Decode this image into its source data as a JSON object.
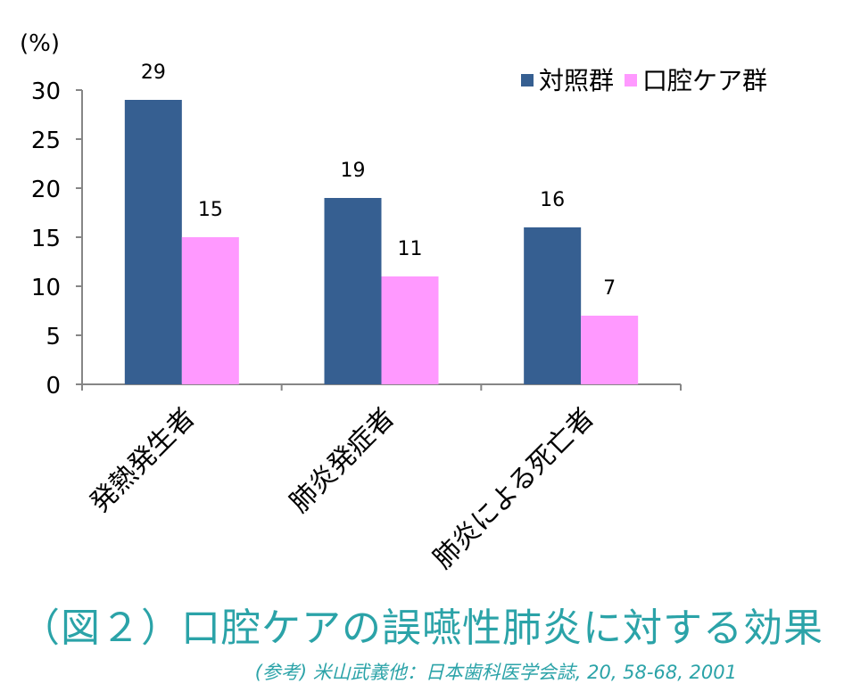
{
  "chart_data": {
    "type": "bar",
    "unit_label": "(%)",
    "categories": [
      "発熱発生者",
      "肺炎発症者",
      "肺炎による死亡者"
    ],
    "series": [
      {
        "name": "対照群",
        "values": [
          29,
          19,
          16
        ],
        "color": "#365f91"
      },
      {
        "name": "口腔ケア群",
        "values": [
          15,
          11,
          7
        ],
        "color": "#ff99ff"
      }
    ],
    "ylim": [
      0,
      30
    ],
    "yticks": [
      0,
      5,
      10,
      15,
      20,
      25,
      30
    ],
    "grid": false,
    "legend": "top-right"
  },
  "caption": "（図２）口腔ケアの誤嚥性肺炎に対する効果",
  "source": "(参考) 米山武義他：日本歯科医学会誌, 20, 58-68, 2001"
}
